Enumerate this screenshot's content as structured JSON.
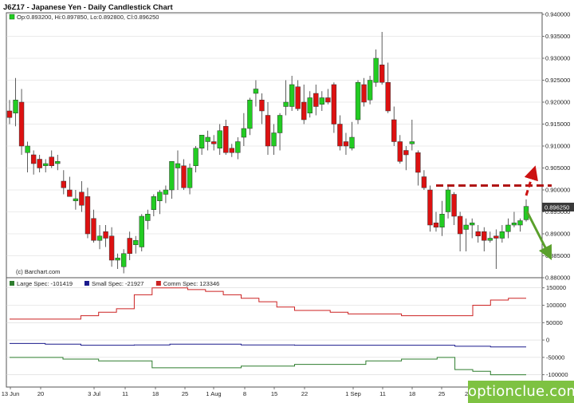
{
  "chart_data": [
    {
      "type": "candlestick",
      "title": "J6Z17 - Japanese Yen - Daily Candlestick Chart",
      "ohlc_readout": "Op:0.893200, Hi:0.897850, Lo:0.892800, Cl:0.896250",
      "source_note": "(c) Barchart.com",
      "ylim": [
        0.88,
        0.94
      ],
      "y_ticks": [
        "0.940000",
        "0.935000",
        "0.930000",
        "0.925000",
        "0.920000",
        "0.915000",
        "0.910000",
        "0.905000",
        "0.900000",
        "0.895000",
        "0.890000",
        "0.885000",
        "0.880000"
      ],
      "last_price_label": "0.896250",
      "x_tick_labels": [
        "13 Jun",
        "20",
        "3 Jul",
        "11",
        "18",
        "25",
        "1 Aug",
        "8",
        "15",
        "22",
        "1 Sep",
        "11",
        "18",
        "25",
        "2 Oct"
      ],
      "candles": [
        {
          "o": 0.918,
          "h": 0.9205,
          "l": 0.915,
          "c": 0.9165
        },
        {
          "o": 0.9175,
          "h": 0.9255,
          "l": 0.9145,
          "c": 0.9205
        },
        {
          "o": 0.92,
          "h": 0.923,
          "l": 0.908,
          "c": 0.91
        },
        {
          "o": 0.9085,
          "h": 0.911,
          "l": 0.904,
          "c": 0.91
        },
        {
          "o": 0.908,
          "h": 0.909,
          "l": 0.9035,
          "c": 0.906
        },
        {
          "o": 0.907,
          "h": 0.908,
          "l": 0.904,
          "c": 0.905
        },
        {
          "o": 0.9055,
          "h": 0.907,
          "l": 0.904,
          "c": 0.906
        },
        {
          "o": 0.9075,
          "h": 0.909,
          "l": 0.905,
          "c": 0.9055
        },
        {
          "o": 0.906,
          "h": 0.908,
          "l": 0.9045,
          "c": 0.9065
        },
        {
          "o": 0.902,
          "h": 0.9045,
          "l": 0.899,
          "c": 0.9005
        },
        {
          "o": 0.9,
          "h": 0.903,
          "l": 0.8985,
          "c": 0.8985
        },
        {
          "o": 0.8975,
          "h": 0.9,
          "l": 0.8955,
          "c": 0.898
        },
        {
          "o": 0.8995,
          "h": 0.902,
          "l": 0.895,
          "c": 0.8965
        },
        {
          "o": 0.8985,
          "h": 0.9005,
          "l": 0.889,
          "c": 0.89
        },
        {
          "o": 0.8935,
          "h": 0.8955,
          "l": 0.888,
          "c": 0.8885
        },
        {
          "o": 0.8885,
          "h": 0.892,
          "l": 0.8865,
          "c": 0.8895
        },
        {
          "o": 0.8905,
          "h": 0.892,
          "l": 0.887,
          "c": 0.889
        },
        {
          "o": 0.8895,
          "h": 0.8915,
          "l": 0.8825,
          "c": 0.884
        },
        {
          "o": 0.884,
          "h": 0.8855,
          "l": 0.882,
          "c": 0.8845
        },
        {
          "o": 0.8825,
          "h": 0.8865,
          "l": 0.881,
          "c": 0.8855
        },
        {
          "o": 0.889,
          "h": 0.8905,
          "l": 0.884,
          "c": 0.8855
        },
        {
          "o": 0.8875,
          "h": 0.8895,
          "l": 0.8855,
          "c": 0.8885
        },
        {
          "o": 0.887,
          "h": 0.8945,
          "l": 0.886,
          "c": 0.894
        },
        {
          "o": 0.893,
          "h": 0.8955,
          "l": 0.891,
          "c": 0.8945
        },
        {
          "o": 0.8955,
          "h": 0.899,
          "l": 0.894,
          "c": 0.8985
        },
        {
          "o": 0.8975,
          "h": 0.9,
          "l": 0.8945,
          "c": 0.8995
        },
        {
          "o": 0.899,
          "h": 0.901,
          "l": 0.897,
          "c": 0.9
        },
        {
          "o": 0.9,
          "h": 0.9065,
          "l": 0.898,
          "c": 0.9065
        },
        {
          "o": 0.905,
          "h": 0.909,
          "l": 0.9,
          "c": 0.906
        },
        {
          "o": 0.9055,
          "h": 0.907,
          "l": 0.9,
          "c": 0.9005
        },
        {
          "o": 0.9005,
          "h": 0.906,
          "l": 0.899,
          "c": 0.905
        },
        {
          "o": 0.9055,
          "h": 0.91,
          "l": 0.904,
          "c": 0.9095
        },
        {
          "o": 0.9095,
          "h": 0.9125,
          "l": 0.908,
          "c": 0.9125
        },
        {
          "o": 0.911,
          "h": 0.9135,
          "l": 0.909,
          "c": 0.912
        },
        {
          "o": 0.911,
          "h": 0.9125,
          "l": 0.909,
          "c": 0.9105
        },
        {
          "o": 0.9095,
          "h": 0.915,
          "l": 0.908,
          "c": 0.9135
        },
        {
          "o": 0.9145,
          "h": 0.916,
          "l": 0.908,
          "c": 0.9085
        },
        {
          "o": 0.9095,
          "h": 0.9105,
          "l": 0.9075,
          "c": 0.9085
        },
        {
          "o": 0.9085,
          "h": 0.912,
          "l": 0.907,
          "c": 0.911
        },
        {
          "o": 0.912,
          "h": 0.9175,
          "l": 0.91,
          "c": 0.914
        },
        {
          "o": 0.914,
          "h": 0.921,
          "l": 0.9125,
          "c": 0.9205
        },
        {
          "o": 0.922,
          "h": 0.925,
          "l": 0.919,
          "c": 0.923
        },
        {
          "o": 0.9205,
          "h": 0.922,
          "l": 0.915,
          "c": 0.918
        },
        {
          "o": 0.917,
          "h": 0.92,
          "l": 0.908,
          "c": 0.91
        },
        {
          "o": 0.91,
          "h": 0.915,
          "l": 0.908,
          "c": 0.913
        },
        {
          "o": 0.913,
          "h": 0.9175,
          "l": 0.909,
          "c": 0.917
        },
        {
          "o": 0.919,
          "h": 0.925,
          "l": 0.917,
          "c": 0.92
        },
        {
          "o": 0.919,
          "h": 0.926,
          "l": 0.918,
          "c": 0.924
        },
        {
          "o": 0.9235,
          "h": 0.925,
          "l": 0.918,
          "c": 0.9185
        },
        {
          "o": 0.92,
          "h": 0.924,
          "l": 0.915,
          "c": 0.916
        },
        {
          "o": 0.9175,
          "h": 0.9225,
          "l": 0.9165,
          "c": 0.921
        },
        {
          "o": 0.922,
          "h": 0.924,
          "l": 0.917,
          "c": 0.919
        },
        {
          "o": 0.9195,
          "h": 0.9225,
          "l": 0.918,
          "c": 0.921
        },
        {
          "o": 0.921,
          "h": 0.923,
          "l": 0.9195,
          "c": 0.92
        },
        {
          "o": 0.924,
          "h": 0.9245,
          "l": 0.913,
          "c": 0.915
        },
        {
          "o": 0.915,
          "h": 0.917,
          "l": 0.909,
          "c": 0.91
        },
        {
          "o": 0.911,
          "h": 0.913,
          "l": 0.908,
          "c": 0.91
        },
        {
          "o": 0.9095,
          "h": 0.9155,
          "l": 0.909,
          "c": 0.912
        },
        {
          "o": 0.916,
          "h": 0.925,
          "l": 0.915,
          "c": 0.9245
        },
        {
          "o": 0.924,
          "h": 0.9255,
          "l": 0.919,
          "c": 0.92
        },
        {
          "o": 0.9205,
          "h": 0.926,
          "l": 0.9195,
          "c": 0.925
        },
        {
          "o": 0.9245,
          "h": 0.932,
          "l": 0.9235,
          "c": 0.93
        },
        {
          "o": 0.9285,
          "h": 0.936,
          "l": 0.924,
          "c": 0.9245
        },
        {
          "o": 0.9245,
          "h": 0.929,
          "l": 0.9175,
          "c": 0.918
        },
        {
          "o": 0.916,
          "h": 0.919,
          "l": 0.91,
          "c": 0.911
        },
        {
          "o": 0.911,
          "h": 0.9125,
          "l": 0.906,
          "c": 0.9065
        },
        {
          "o": 0.909,
          "h": 0.91,
          "l": 0.9045,
          "c": 0.908
        },
        {
          "o": 0.9105,
          "h": 0.916,
          "l": 0.909,
          "c": 0.911
        },
        {
          "o": 0.9085,
          "h": 0.909,
          "l": 0.901,
          "c": 0.904
        },
        {
          "o": 0.903,
          "h": 0.9045,
          "l": 0.9,
          "c": 0.9005
        },
        {
          "o": 0.9,
          "h": 0.901,
          "l": 0.8905,
          "c": 0.892
        },
        {
          "o": 0.8925,
          "h": 0.895,
          "l": 0.8905,
          "c": 0.8915
        },
        {
          "o": 0.8915,
          "h": 0.8975,
          "l": 0.8895,
          "c": 0.8945
        },
        {
          "o": 0.895,
          "h": 0.901,
          "l": 0.8935,
          "c": 0.9
        },
        {
          "o": 0.899,
          "h": 0.8995,
          "l": 0.892,
          "c": 0.894
        },
        {
          "o": 0.894,
          "h": 0.895,
          "l": 0.886,
          "c": 0.89
        },
        {
          "o": 0.891,
          "h": 0.8935,
          "l": 0.886,
          "c": 0.892
        },
        {
          "o": 0.892,
          "h": 0.8935,
          "l": 0.889,
          "c": 0.8925
        },
        {
          "o": 0.8905,
          "h": 0.892,
          "l": 0.888,
          "c": 0.8895
        },
        {
          "o": 0.8905,
          "h": 0.8915,
          "l": 0.886,
          "c": 0.8885
        },
        {
          "o": 0.8885,
          "h": 0.8905,
          "l": 0.888,
          "c": 0.889
        },
        {
          "o": 0.8895,
          "h": 0.891,
          "l": 0.882,
          "c": 0.889
        },
        {
          "o": 0.889,
          "h": 0.892,
          "l": 0.888,
          "c": 0.8905
        },
        {
          "o": 0.8905,
          "h": 0.8935,
          "l": 0.889,
          "c": 0.892
        },
        {
          "o": 0.892,
          "h": 0.895,
          "l": 0.8915,
          "c": 0.8925
        },
        {
          "o": 0.892,
          "h": 0.8935,
          "l": 0.8905,
          "c": 0.893
        },
        {
          "o": 0.8932,
          "h": 0.89785,
          "l": 0.8928,
          "c": 0.89625
        }
      ],
      "annotations": {
        "resistance_level": 0.901,
        "arrow_color_up": "#cc1111",
        "arrow_color_down": "#5aa02c"
      },
      "colors": {
        "up": "#22cc22",
        "down": "#dd1111",
        "last_price_box": "#3a3a3a"
      }
    },
    {
      "type": "line",
      "title": "COT positions",
      "ylim": [
        -110000,
        170000
      ],
      "y_ticks": [
        "150000",
        "100000",
        "50000",
        "0",
        "-50000",
        "-100000"
      ],
      "series": [
        {
          "name": "Large Spec: -101419",
          "color": "#2e7d2e",
          "values": [
            -50000,
            -50000,
            -50000,
            -55000,
            -55000,
            -60000,
            -60000,
            -60000,
            -80000,
            -80000,
            -80000,
            -80000,
            -80000,
            -75000,
            -75000,
            -75000,
            -70000,
            -70000,
            -70000,
            -70000,
            -60000,
            -60000,
            -55000,
            -55000,
            -50000,
            -85000,
            -90000,
            -100000,
            -100000
          ]
        },
        {
          "name": "Small Spec: -21927",
          "color": "#1a1a8c",
          "values": [
            -10000,
            -10000,
            -12000,
            -12000,
            -15000,
            -15000,
            -15000,
            -14000,
            -14000,
            -12000,
            -12000,
            -12000,
            -12000,
            -14000,
            -14000,
            -14000,
            -15000,
            -15000,
            -15000,
            -15000,
            -15000,
            -15000,
            -15000,
            -15000,
            -15000,
            -18000,
            -18000,
            -20000,
            -20000
          ]
        },
        {
          "name": "Comm Spec: 123346",
          "color": "#cc2222",
          "values": [
            60000,
            60000,
            60000,
            60000,
            70000,
            80000,
            90000,
            130000,
            150000,
            150000,
            145000,
            140000,
            130000,
            120000,
            110000,
            95000,
            85000,
            85000,
            80000,
            75000,
            75000,
            75000,
            70000,
            70000,
            70000,
            70000,
            100000,
            115000,
            120000
          ]
        }
      ]
    }
  ],
  "watermark": "optionclue.com"
}
